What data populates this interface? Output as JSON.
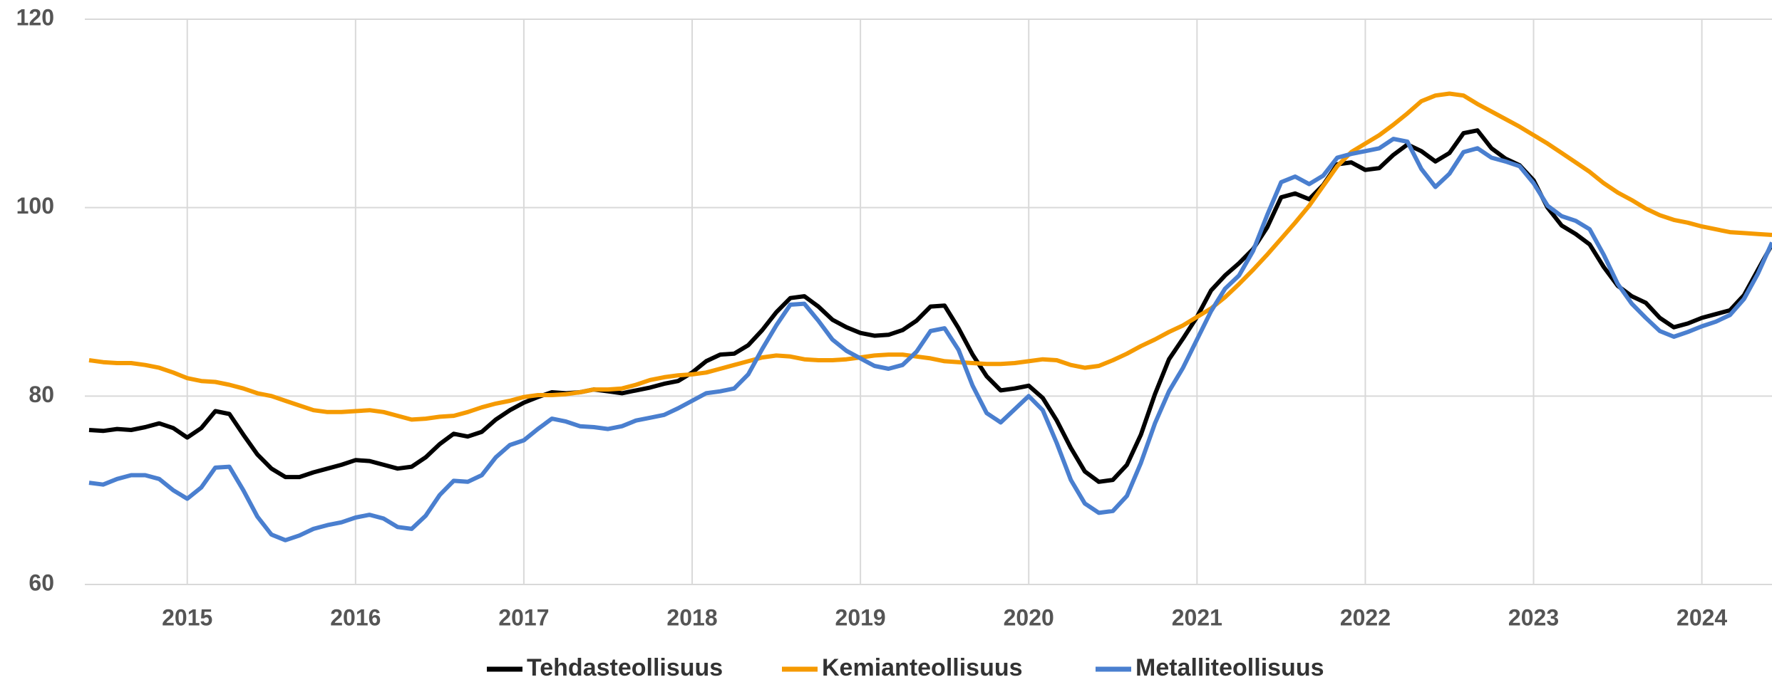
{
  "chart_data": {
    "type": "line",
    "categories": [
      null,
      null,
      null,
      null,
      null,
      null,
      null,
      "2015",
      null,
      null,
      null,
      null,
      null,
      null,
      null,
      null,
      null,
      null,
      null,
      "2016",
      null,
      null,
      null,
      null,
      null,
      null,
      null,
      null,
      null,
      null,
      null,
      "2017",
      null,
      null,
      null,
      null,
      null,
      null,
      null,
      null,
      null,
      null,
      null,
      "2018",
      null,
      null,
      null,
      null,
      null,
      null,
      null,
      null,
      null,
      null,
      null,
      "2019",
      null,
      null,
      null,
      null,
      null,
      null,
      null,
      null,
      null,
      null,
      null,
      "2020",
      null,
      null,
      null,
      null,
      null,
      null,
      null,
      null,
      null,
      null,
      null,
      "2021",
      null,
      null,
      null,
      null,
      null,
      null,
      null,
      null,
      null,
      null,
      null,
      "2022",
      null,
      null,
      null,
      null,
      null,
      null,
      null,
      null,
      null,
      null,
      null,
      "2023",
      null,
      null,
      null,
      null,
      null,
      null,
      null,
      null,
      null,
      null,
      null,
      "2024",
      null,
      null,
      null,
      null,
      null
    ],
    "series": [
      {
        "name": "Tehdasteollisuus",
        "color": "#000000",
        "values": [
          76.4,
          76.3,
          76.5,
          76.4,
          76.7,
          77.1,
          76.6,
          75.6,
          76.6,
          78.4,
          78.1,
          75.9,
          73.8,
          72.3,
          71.4,
          71.4,
          71.9,
          72.3,
          72.7,
          73.2,
          73.1,
          72.7,
          72.3,
          72.5,
          73.5,
          74.9,
          76.0,
          75.7,
          76.2,
          77.5,
          78.5,
          79.3,
          79.9,
          80.4,
          80.3,
          80.4,
          80.7,
          80.5,
          80.3,
          80.6,
          80.9,
          81.3,
          81.6,
          82.5,
          83.7,
          84.4,
          84.5,
          85.4,
          87.0,
          88.9,
          90.4,
          90.6,
          89.5,
          88.1,
          87.3,
          86.7,
          86.4,
          86.5,
          87.0,
          88.0,
          89.5,
          89.6,
          87.2,
          84.4,
          82.1,
          80.6,
          80.8,
          81.1,
          79.8,
          77.4,
          74.5,
          72.0,
          70.9,
          71.1,
          72.7,
          75.9,
          80.2,
          83.9,
          86.1,
          88.4,
          91.2,
          92.8,
          94.1,
          95.6,
          97.9,
          101.1,
          101.5,
          100.9,
          102.4,
          104.6,
          104.8,
          104.0,
          104.2,
          105.6,
          106.7,
          106.0,
          104.9,
          105.8,
          107.9,
          108.2,
          106.3,
          105.2,
          104.5,
          102.9,
          100.0,
          98.1,
          97.2,
          96.1,
          93.7,
          91.7,
          90.6,
          89.9,
          88.3,
          87.3,
          87.7,
          88.3,
          88.7,
          89.1,
          90.7,
          93.4,
          96.1
        ]
      },
      {
        "name": "Kemianteollisuus",
        "color": "#f59a00",
        "values": [
          83.8,
          83.6,
          83.5,
          83.5,
          83.3,
          83.0,
          82.5,
          81.9,
          81.6,
          81.5,
          81.2,
          80.8,
          80.3,
          80.0,
          79.5,
          79.0,
          78.5,
          78.3,
          78.3,
          78.4,
          78.5,
          78.3,
          77.9,
          77.5,
          77.6,
          77.8,
          77.9,
          78.3,
          78.8,
          79.2,
          79.5,
          79.9,
          80.1,
          80.1,
          80.2,
          80.4,
          80.7,
          80.7,
          80.8,
          81.2,
          81.7,
          82.0,
          82.2,
          82.3,
          82.5,
          82.9,
          83.3,
          83.7,
          84.1,
          84.3,
          84.2,
          83.9,
          83.8,
          83.8,
          83.9,
          84.1,
          84.3,
          84.4,
          84.4,
          84.2,
          84.0,
          83.7,
          83.6,
          83.5,
          83.4,
          83.4,
          83.5,
          83.7,
          83.9,
          83.8,
          83.3,
          83.0,
          83.2,
          83.8,
          84.5,
          85.3,
          86.0,
          86.8,
          87.5,
          88.4,
          89.3,
          90.5,
          91.9,
          93.4,
          95.0,
          96.7,
          98.4,
          100.2,
          102.3,
          104.4,
          105.9,
          106.8,
          107.7,
          108.8,
          110.0,
          111.3,
          111.9,
          112.1,
          111.9,
          111.0,
          110.2,
          109.4,
          108.6,
          107.7,
          106.8,
          105.8,
          104.8,
          103.8,
          102.6,
          101.6,
          100.8,
          99.9,
          99.2,
          98.7,
          98.4,
          98.0,
          97.7,
          97.4,
          97.3,
          97.2,
          97.1
        ]
      },
      {
        "name": "Metalliteollisuus",
        "color": "#4a7fcf",
        "values": [
          70.8,
          70.6,
          71.2,
          71.6,
          71.6,
          71.2,
          70.0,
          69.1,
          70.3,
          72.4,
          72.5,
          70.0,
          67.2,
          65.3,
          64.7,
          65.2,
          65.9,
          66.3,
          66.6,
          67.1,
          67.4,
          67.0,
          66.1,
          65.9,
          67.3,
          69.5,
          71.0,
          70.9,
          71.6,
          73.5,
          74.8,
          75.3,
          76.5,
          77.6,
          77.3,
          76.8,
          76.7,
          76.5,
          76.8,
          77.4,
          77.7,
          78.0,
          78.7,
          79.5,
          80.3,
          80.5,
          80.8,
          82.3,
          85.0,
          87.5,
          89.7,
          89.8,
          88.0,
          86.0,
          84.8,
          84.0,
          83.2,
          82.9,
          83.3,
          84.7,
          86.9,
          87.2,
          84.9,
          81.1,
          78.2,
          77.2,
          78.6,
          80.0,
          78.5,
          75.0,
          71.1,
          68.6,
          67.6,
          67.8,
          69.4,
          72.9,
          77.1,
          80.5,
          83.0,
          86.0,
          89.0,
          91.4,
          92.8,
          95.4,
          99.2,
          102.7,
          103.3,
          102.5,
          103.4,
          105.3,
          105.7,
          106.0,
          106.3,
          107.3,
          107.0,
          104.1,
          102.2,
          103.6,
          105.9,
          106.3,
          105.3,
          104.9,
          104.4,
          102.6,
          100.2,
          99.1,
          98.6,
          97.7,
          95.0,
          91.9,
          89.8,
          88.3,
          86.9,
          86.3,
          86.8,
          87.4,
          87.9,
          88.6,
          90.3,
          93.0,
          96.3
        ]
      }
    ],
    "ylim": [
      60,
      120
    ],
    "yticks": [
      60,
      80,
      100,
      120
    ],
    "grid": true,
    "legend": "bottom"
  }
}
